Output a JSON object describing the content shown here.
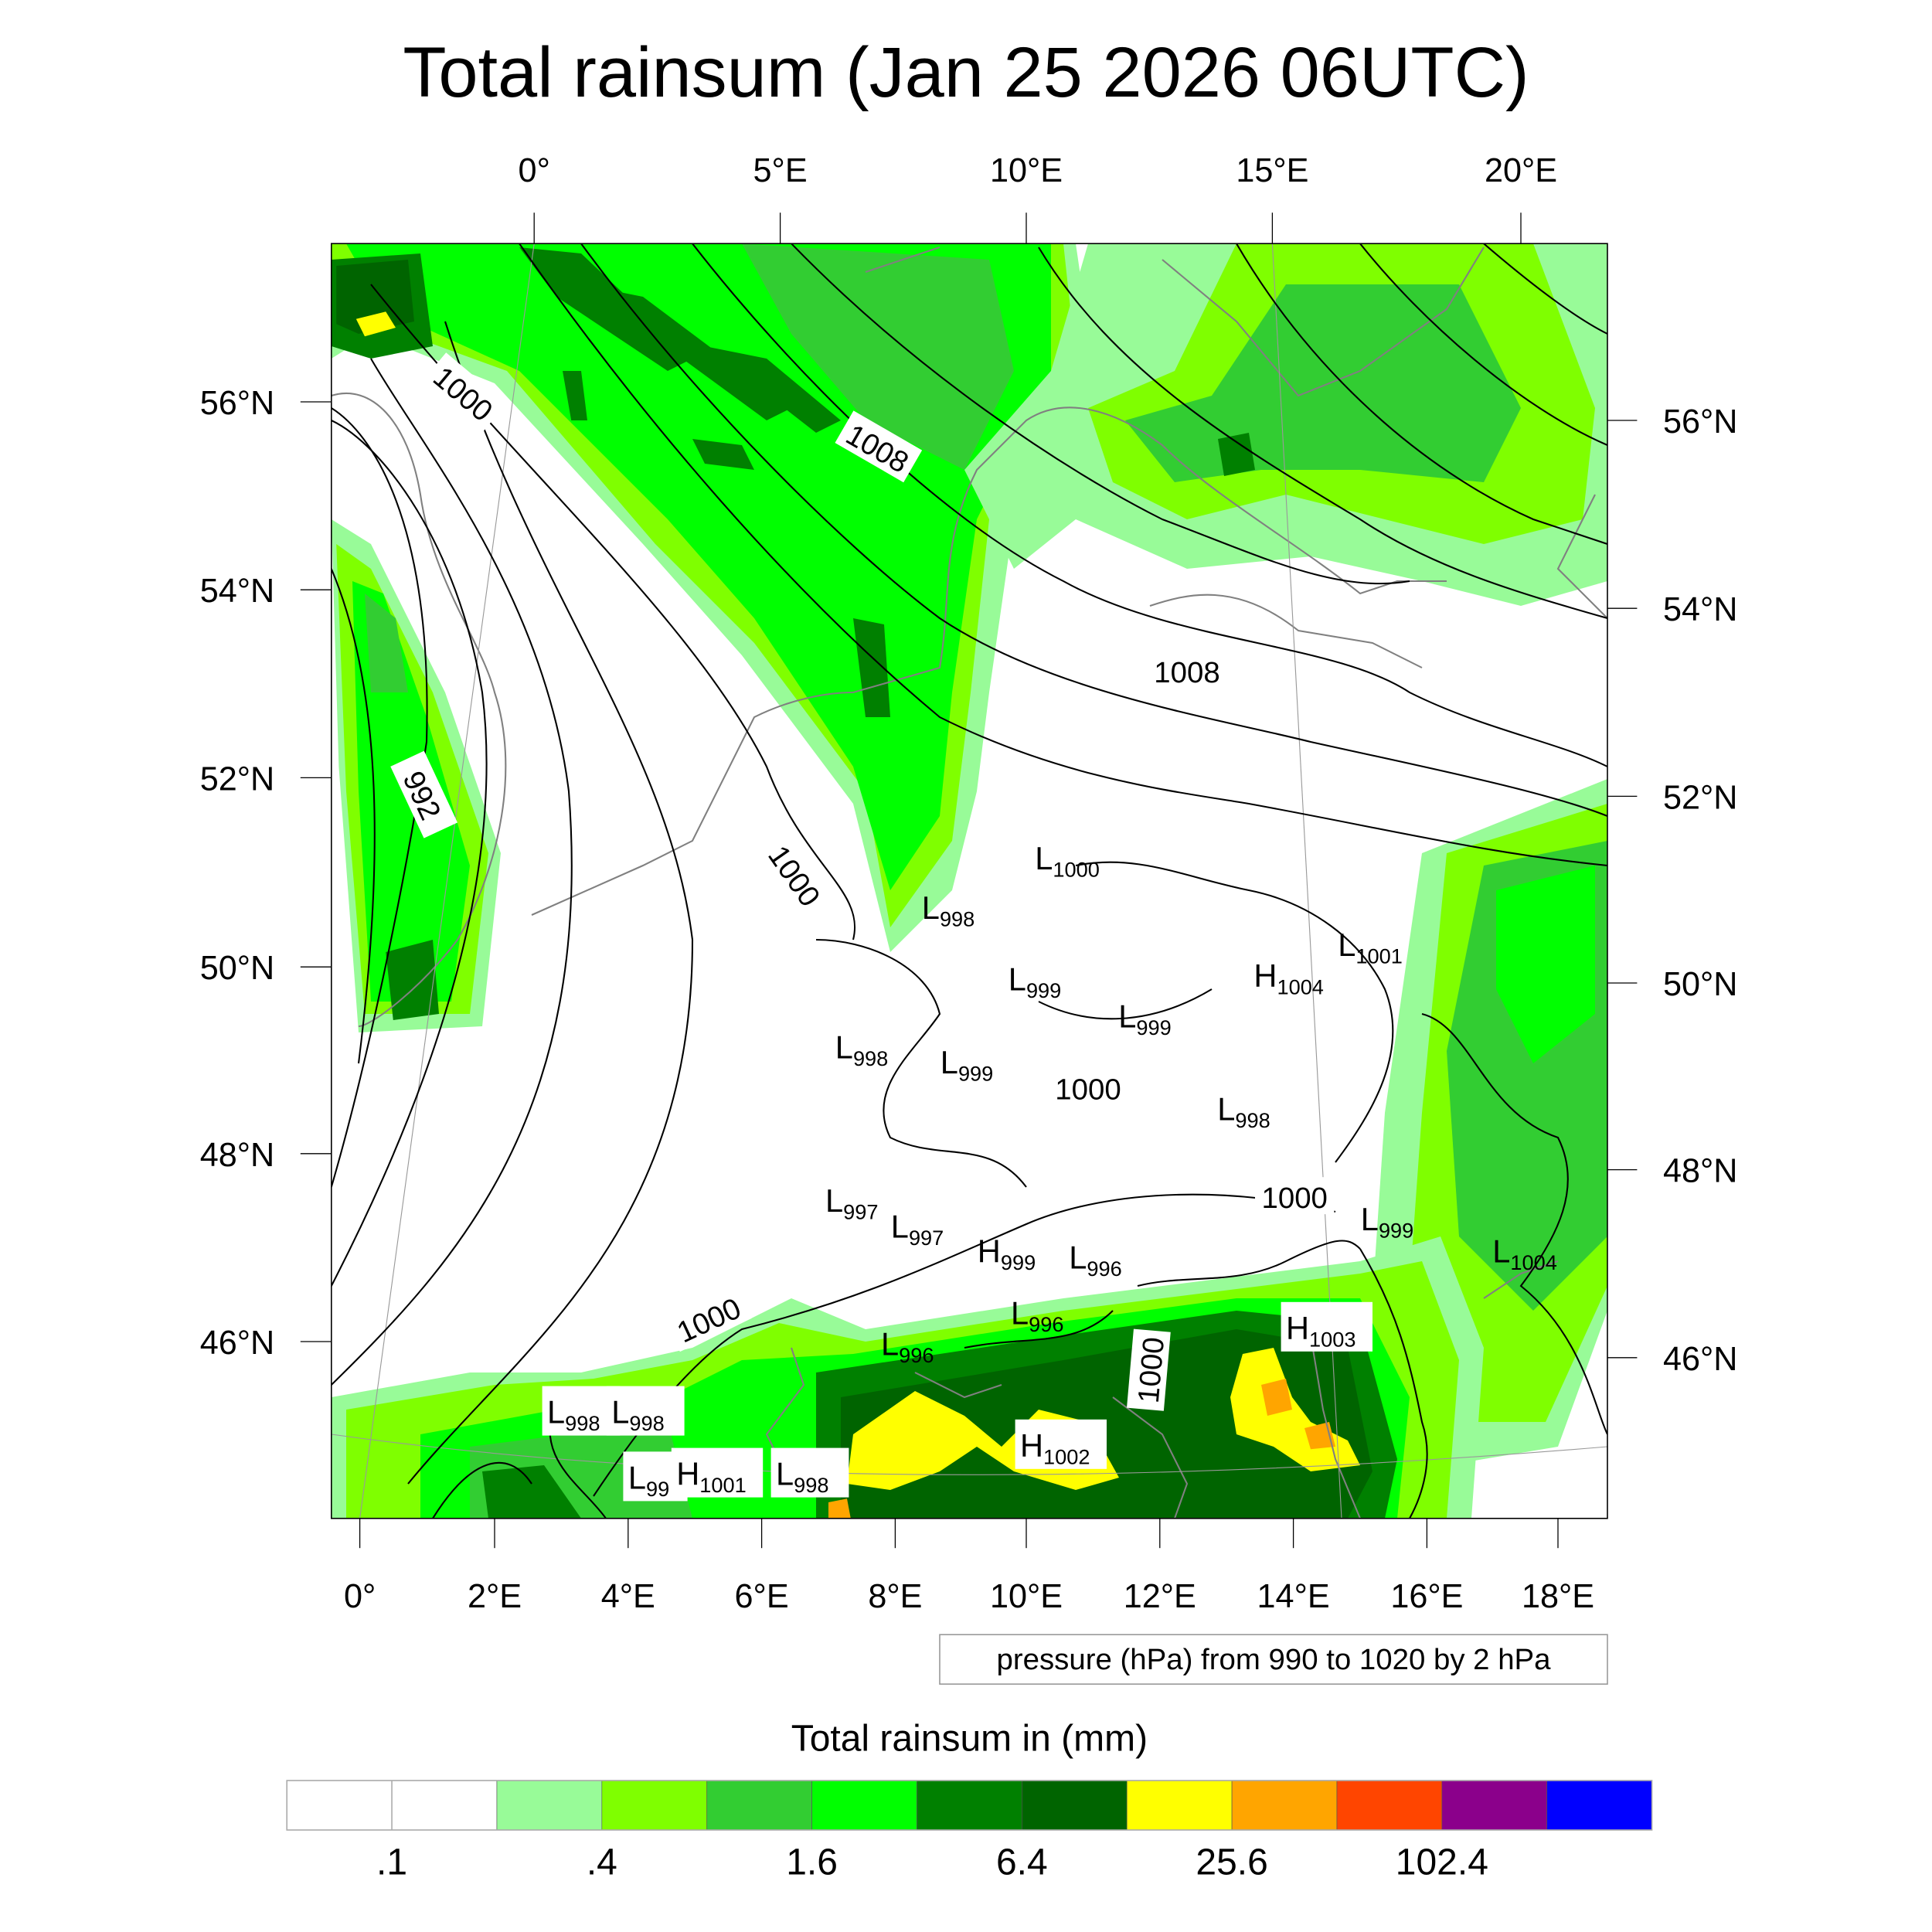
{
  "title": "Total rainsum (Jan 25 2026 06UTC)",
  "axes": {
    "top_lon": [
      "0°",
      "5°E",
      "10°E",
      "15°E",
      "20°E"
    ],
    "bottom_lon": [
      "0°",
      "2°E",
      "4°E",
      "6°E",
      "8°E",
      "10°E",
      "12°E",
      "14°E",
      "16°E",
      "18°E"
    ],
    "left_lat": [
      "56°N",
      "54°N",
      "52°N",
      "50°N",
      "48°N",
      "46°N"
    ],
    "right_lat": [
      "56°N",
      "54°N",
      "52°N",
      "50°N",
      "48°N",
      "46°N"
    ]
  },
  "contour_info": "pressure (hPa) from 990 to 1020 by 2 hPa",
  "contour_labels": [
    "1000",
    "1008",
    "1008",
    "992",
    "1000",
    "1000",
    "1000",
    "1000",
    "1000"
  ],
  "pressure_centers": [
    {
      "type": "L",
      "value": "1000"
    },
    {
      "type": "L",
      "value": "998"
    },
    {
      "type": "L",
      "value": "1001"
    },
    {
      "type": "H",
      "value": "1004"
    },
    {
      "type": "L",
      "value": "999"
    },
    {
      "type": "L",
      "value": "999"
    },
    {
      "type": "L",
      "value": "998"
    },
    {
      "type": "L",
      "value": "999"
    },
    {
      "type": "L",
      "value": "998"
    },
    {
      "type": "L",
      "value": "997"
    },
    {
      "type": "L",
      "value": "997"
    },
    {
      "type": "H",
      "value": "999"
    },
    {
      "type": "L",
      "value": "996"
    },
    {
      "type": "L",
      "value": "999"
    },
    {
      "type": "L",
      "value": "1004"
    },
    {
      "type": "L",
      "value": "996"
    },
    {
      "type": "L",
      "value": "996"
    },
    {
      "type": "H",
      "value": "1003"
    },
    {
      "type": "L",
      "value": "998"
    },
    {
      "type": "L",
      "value": "998"
    },
    {
      "type": "L",
      "value": "99"
    },
    {
      "type": "H",
      "value": "1001"
    },
    {
      "type": "L",
      "value": "998"
    },
    {
      "type": "H",
      "value": "1002"
    }
  ],
  "colorbar": {
    "title": "Total rainsum in (mm)",
    "colors": [
      "#ffffff",
      "#ffffff",
      "#98fb98",
      "#7fff00",
      "#32cd32",
      "#00ff00",
      "#008000",
      "#006400",
      "#ffff00",
      "#ffa500",
      "#ff4500",
      "#8b008b",
      "#0000ff"
    ],
    "labels": [
      ".1",
      ".4",
      "1.6",
      "6.4",
      "25.6",
      "102.4"
    ]
  }
}
